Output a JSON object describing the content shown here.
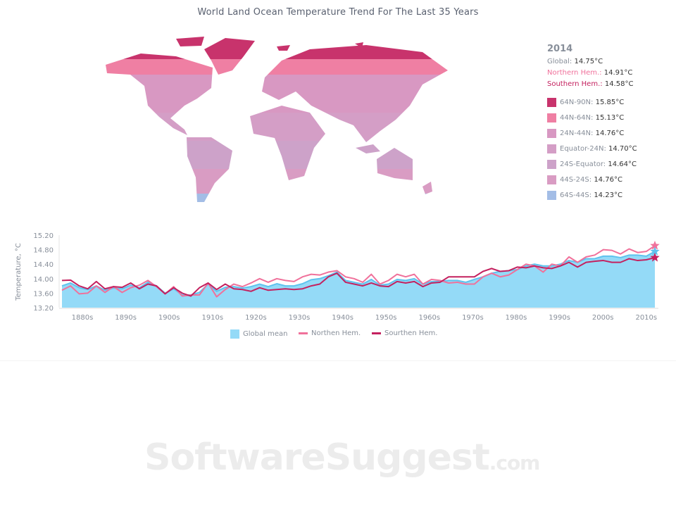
{
  "title": "World Land Ocean Temperature Trend For The Last 35 Years",
  "info": {
    "year": "2014",
    "global_label": "Global:",
    "global_value": "14.75°C",
    "north_label": "Northern Hem.:",
    "north_value": "14.91°C",
    "south_label": "Southern Hem.:",
    "south_value": "14.58°C",
    "bands": [
      {
        "label": "64N-90N:",
        "value": "15.85°C",
        "color": "#c8336c"
      },
      {
        "label": "44N-64N:",
        "value": "15.13°C",
        "color": "#ef7fa3"
      },
      {
        "label": "24N-44N:",
        "value": "14.76°C",
        "color": "#d898c2"
      },
      {
        "label": "Equator-24N:",
        "value": "14.70°C",
        "color": "#d49ec6"
      },
      {
        "label": "24S-Equator:",
        "value": "14.64°C",
        "color": "#cda2c9"
      },
      {
        "label": "44S-24S:",
        "value": "14.76°C",
        "color": "#d99cc3"
      },
      {
        "label": "64S-44S:",
        "value": "14.23°C",
        "color": "#a3bde6"
      }
    ]
  },
  "colors": {
    "global": "#94daf7",
    "global_line": "#5fc3ee",
    "north": "#f0719b",
    "south": "#c4215f",
    "axis_text": "#888f9a"
  },
  "chart_data": {
    "type": "area",
    "ylabel": "Temperature, °C",
    "ylim": [
      13.2,
      15.2
    ],
    "yticks": [
      "13.20",
      "13.60",
      "14.00",
      "14.40",
      "14.80",
      "15.20"
    ],
    "xtick_labels": [
      "1880s",
      "1890s",
      "1900s",
      "1910s",
      "1920s",
      "1930s",
      "1940s",
      "1950s",
      "1960s",
      "1970s",
      "1980s",
      "1990s",
      "2000s",
      "2010s"
    ],
    "legend_position": "bottom",
    "x": [
      1876,
      1878,
      1880,
      1882,
      1884,
      1886,
      1888,
      1890,
      1892,
      1894,
      1896,
      1898,
      1900,
      1902,
      1904,
      1906,
      1908,
      1910,
      1912,
      1914,
      1916,
      1918,
      1920,
      1922,
      1924,
      1926,
      1928,
      1930,
      1932,
      1934,
      1936,
      1938,
      1940,
      1942,
      1944,
      1946,
      1948,
      1950,
      1952,
      1954,
      1956,
      1958,
      1960,
      1962,
      1964,
      1966,
      1968,
      1970,
      1972,
      1974,
      1976,
      1978,
      1980,
      1982,
      1984,
      1986,
      1988,
      1990,
      1992,
      1994,
      1996,
      1998,
      2000,
      2002,
      2004,
      2006,
      2008,
      2010,
      2012,
      2014
    ],
    "series": [
      {
        "name": "Global mean",
        "values": [
          13.8,
          13.88,
          13.75,
          13.7,
          13.8,
          13.68,
          13.74,
          13.72,
          13.82,
          13.75,
          13.9,
          13.8,
          13.6,
          13.72,
          13.55,
          13.55,
          13.62,
          13.85,
          13.65,
          13.76,
          13.78,
          13.74,
          13.78,
          13.85,
          13.78,
          13.86,
          13.8,
          13.8,
          13.86,
          13.97,
          14.0,
          14.08,
          14.18,
          13.95,
          13.9,
          13.85,
          13.98,
          13.82,
          13.85,
          13.98,
          13.95,
          14.0,
          13.85,
          13.92,
          13.92,
          13.95,
          13.95,
          13.9,
          13.98,
          14.05,
          14.15,
          14.2,
          14.22,
          14.25,
          14.35,
          14.4,
          14.35,
          14.35,
          14.4,
          14.5,
          14.45,
          14.55,
          14.55,
          14.62,
          14.62,
          14.58,
          14.65,
          14.65,
          14.62,
          14.75
        ]
      },
      {
        "name": "Northen Hem.",
        "values": [
          13.68,
          13.8,
          13.58,
          13.6,
          13.8,
          13.62,
          13.78,
          13.62,
          13.75,
          13.82,
          13.95,
          13.78,
          13.58,
          13.78,
          13.52,
          13.55,
          13.55,
          13.88,
          13.5,
          13.7,
          13.85,
          13.78,
          13.88,
          14.0,
          13.9,
          14.0,
          13.95,
          13.92,
          14.05,
          14.12,
          14.1,
          14.18,
          14.22,
          14.05,
          14.0,
          13.9,
          14.12,
          13.85,
          13.95,
          14.12,
          14.05,
          14.12,
          13.85,
          13.98,
          13.95,
          13.88,
          13.9,
          13.85,
          13.85,
          14.05,
          14.15,
          14.05,
          14.1,
          14.25,
          14.4,
          14.35,
          14.18,
          14.4,
          14.35,
          14.6,
          14.45,
          14.6,
          14.65,
          14.8,
          14.78,
          14.68,
          14.82,
          14.72,
          14.75,
          14.91
        ]
      },
      {
        "name": "Sourthen Hem.",
        "values": [
          13.95,
          13.96,
          13.8,
          13.72,
          13.92,
          13.72,
          13.78,
          13.76,
          13.88,
          13.72,
          13.85,
          13.8,
          13.58,
          13.75,
          13.6,
          13.52,
          13.75,
          13.88,
          13.7,
          13.85,
          13.72,
          13.7,
          13.65,
          13.75,
          13.68,
          13.7,
          13.72,
          13.7,
          13.72,
          13.8,
          13.85,
          14.05,
          14.15,
          13.9,
          13.85,
          13.8,
          13.88,
          13.8,
          13.78,
          13.92,
          13.88,
          13.92,
          13.78,
          13.88,
          13.9,
          14.05,
          14.05,
          14.05,
          14.05,
          14.2,
          14.28,
          14.2,
          14.22,
          14.32,
          14.3,
          14.35,
          14.3,
          14.28,
          14.35,
          14.45,
          14.32,
          14.45,
          14.48,
          14.5,
          14.45,
          14.45,
          14.55,
          14.5,
          14.52,
          14.58
        ]
      }
    ]
  },
  "watermark": {
    "main": "SoftwareSuggest",
    "suffix": ".com"
  }
}
